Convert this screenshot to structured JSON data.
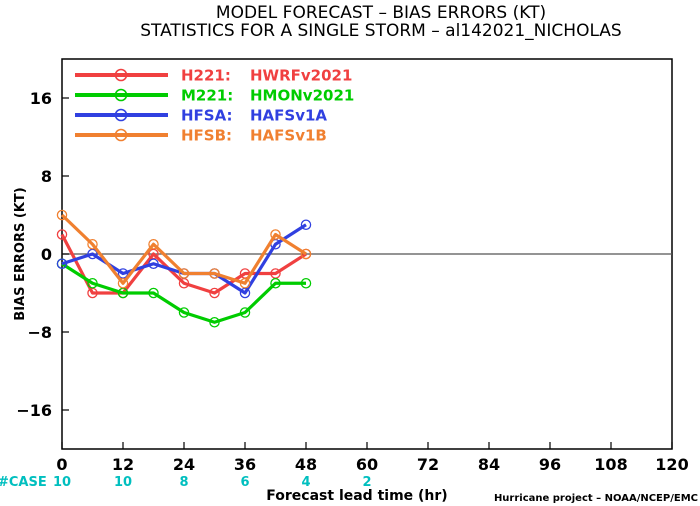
{
  "title_line1": "MODEL FORECAST – BIAS ERRORS (KT)",
  "title_line2": "STATISTICS FOR A SINGLE STORM – al142021_NICHOLAS",
  "case_label": "#CASE",
  "case_counts": [
    {
      "x": 0,
      "n": "10"
    },
    {
      "x": 12,
      "n": "10"
    },
    {
      "x": 24,
      "n": "8"
    },
    {
      "x": 36,
      "n": "6"
    },
    {
      "x": 48,
      "n": "4"
    },
    {
      "x": 60,
      "n": "2"
    }
  ],
  "credit": "Hurricane project – NOAA/NCEP/EMC",
  "colors": {
    "case": "#00bfbf",
    "zero_line": "#555555"
  },
  "chart_data": {
    "type": "line",
    "xlabel": "Forecast lead time (hr)",
    "ylabel": "BIAS ERRORS (KT)",
    "xlim": [
      0,
      120
    ],
    "ylim": [
      -20,
      20
    ],
    "xticks": [
      0,
      12,
      24,
      36,
      48,
      60,
      72,
      84,
      96,
      108,
      120
    ],
    "yticks": [
      -16,
      -8,
      0,
      8,
      16
    ],
    "ytick_labels": [
      "−16",
      "−8",
      "0",
      "8",
      "16"
    ],
    "legend_position": "top-left",
    "grid": false,
    "series": [
      {
        "label": "H221:",
        "name": "HWRFv2021",
        "color": "#f04040",
        "x": [
          0,
          6,
          12,
          18,
          24,
          30,
          36,
          42,
          48
        ],
        "y": [
          2,
          -4,
          -4,
          0,
          -3,
          -4,
          -2,
          -2,
          0
        ]
      },
      {
        "label": "M221:",
        "name": "HMONv2021",
        "color": "#00cc00",
        "x": [
          0,
          6,
          12,
          18,
          24,
          30,
          36,
          42,
          48
        ],
        "y": [
          -1,
          -3,
          -4,
          -4,
          -6,
          -7,
          -6,
          -3,
          -3
        ]
      },
      {
        "label": "HFSA:",
        "name": "HAFSv1A",
        "color": "#3040e0",
        "x": [
          0,
          6,
          12,
          18,
          24,
          30,
          36,
          42,
          48
        ],
        "y": [
          -1,
          0,
          -2,
          -1,
          -2,
          -2,
          -4,
          1,
          3
        ]
      },
      {
        "label": "HFSB:",
        "name": "HAFSv1B",
        "color": "#f08030",
        "x": [
          0,
          6,
          12,
          18,
          24,
          30,
          36,
          42,
          48
        ],
        "y": [
          4,
          1,
          -3,
          1,
          -2,
          -2,
          -3,
          2,
          0
        ]
      }
    ]
  }
}
